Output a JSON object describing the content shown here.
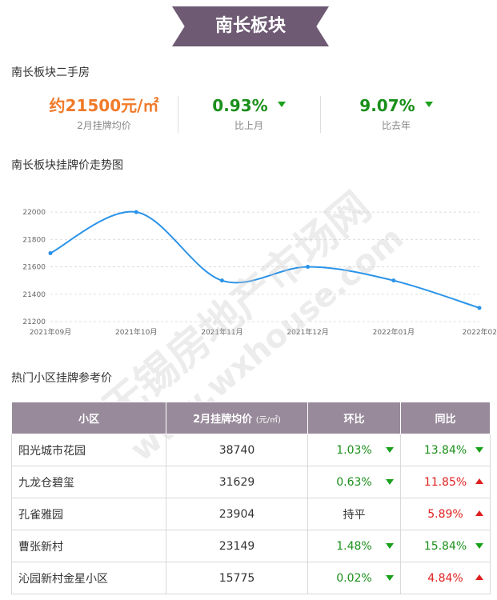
{
  "banner": {
    "title": "南长板块"
  },
  "section1": {
    "title": "南长板块二手房"
  },
  "stats": {
    "price": {
      "value": "约21500元/㎡",
      "label": "2月挂牌均价"
    },
    "mom": {
      "value": "0.93%",
      "label": "比上月",
      "direction": "down"
    },
    "yoy": {
      "value": "9.07%",
      "label": "比去年",
      "direction": "down"
    }
  },
  "section2": {
    "title": "南长板块挂牌价走势图"
  },
  "chart_data": {
    "type": "line",
    "title": "南长板块挂牌价走势图",
    "x": [
      "2021年09月",
      "2021年10月",
      "2021年11月",
      "2021年12月",
      "2022年01月",
      "2022年02"
    ],
    "y_ticks": [
      "21200",
      "21400",
      "21600",
      "21800",
      "22000"
    ],
    "series": [
      {
        "values": [
          21700,
          22000,
          21500,
          21600,
          21500,
          21300
        ]
      }
    ],
    "ylim": [
      21200,
      22100
    ],
    "grid": true,
    "line_color": "#2a93e8"
  },
  "watermark": {
    "line1": "无锡房地产市场网",
    "line2": "www.wxhouse.com"
  },
  "section3": {
    "title": "热门小区挂牌参考价"
  },
  "table": {
    "headers": {
      "name": "小区",
      "price": "2月挂牌均价",
      "price_unit": "(元/㎡)",
      "mom": "环比",
      "yoy": "同比"
    },
    "rows": [
      {
        "name": "阳光城市花园",
        "price": "38740",
        "mom": "1.03%",
        "mom_dir": "down",
        "yoy": "13.84%",
        "yoy_dir": "down"
      },
      {
        "name": "九龙仓碧玺",
        "price": "31629",
        "mom": "0.63%",
        "mom_dir": "down",
        "yoy": "11.85%",
        "yoy_dir": "up"
      },
      {
        "name": "孔雀雅园",
        "price": "23904",
        "mom": "持平",
        "mom_dir": "flat",
        "yoy": "5.89%",
        "yoy_dir": "up"
      },
      {
        "name": "曹张新村",
        "price": "23149",
        "mom": "1.48%",
        "mom_dir": "down",
        "yoy": "15.84%",
        "yoy_dir": "down"
      },
      {
        "name": "沁园新村金星小区",
        "price": "15775",
        "mom": "0.02%",
        "mom_dir": "down",
        "yoy": "4.84%",
        "yoy_dir": "up"
      }
    ]
  }
}
